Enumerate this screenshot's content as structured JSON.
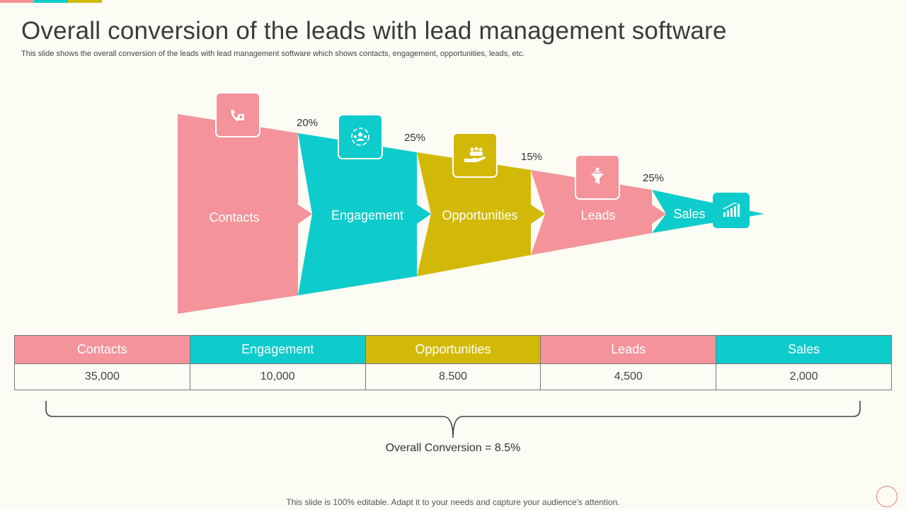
{
  "header": {
    "title": "Overall conversion of the leads with lead management software",
    "subtitle": "This slide shows the overall conversion of the leads with lead management software which shows contacts, engagement, opportunities, leads, etc."
  },
  "colors": {
    "pink": "#f4939a",
    "teal": "#0ecccb",
    "mustard": "#d3b907",
    "background": "#fcfbf4"
  },
  "funnel": {
    "stages": [
      {
        "label": "Contacts",
        "color": "#f4939a",
        "icon": "phone-handset-icon"
      },
      {
        "label": "Engagement",
        "color": "#0ecccb",
        "icon": "people-network-icon"
      },
      {
        "label": "Opportunities",
        "color": "#d3b907",
        "icon": "hand-with-people-icon"
      },
      {
        "label": "Leads",
        "color": "#f4939a",
        "icon": "funnel-icon"
      },
      {
        "label": "Sales",
        "color": "#0ecccb",
        "icon": "bar-chart-growth-icon"
      }
    ],
    "rates": [
      "20%",
      "25%",
      "15%",
      "25%"
    ]
  },
  "table": {
    "headers": [
      "Contacts",
      "Engagement",
      "Opportunities",
      "Leads",
      "Sales"
    ],
    "values": [
      "35,000",
      "10,000",
      "8.500",
      "4,500",
      "2,000"
    ]
  },
  "summary": {
    "overall": "Overall Conversion = 8.5%"
  },
  "footer": {
    "text": "This slide is 100% editable. Adapt it to your needs and capture your audience's attention."
  }
}
